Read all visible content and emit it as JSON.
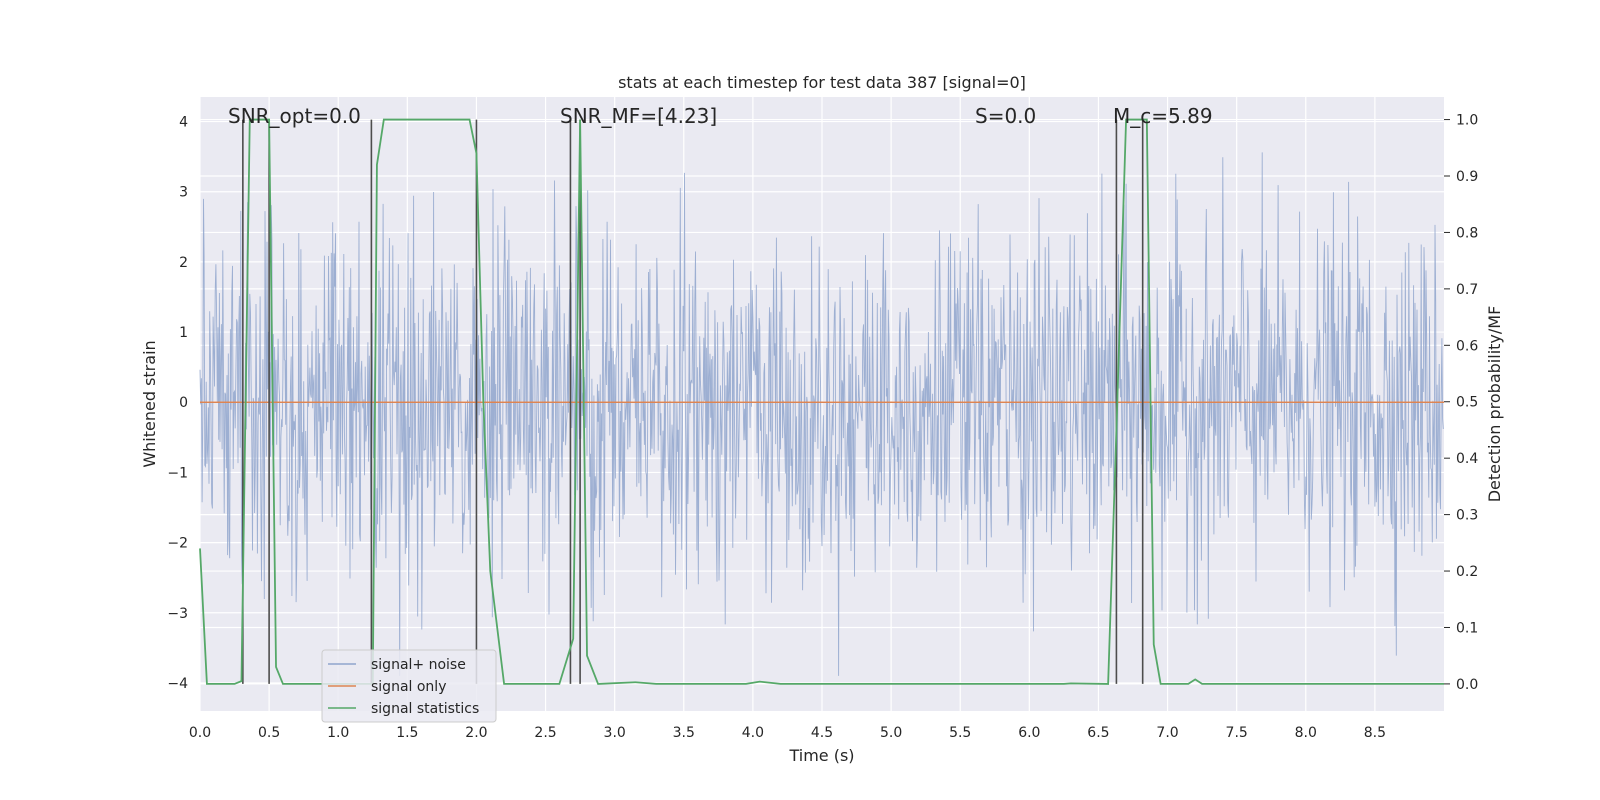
{
  "chart_data": {
    "type": "line",
    "title": "stats at each timestep for test data 387 [signal=0]",
    "xlabel": "Time (s)",
    "ylabel": "Whitened strain",
    "y2label": "Detection probability/MF",
    "xlim": [
      0.0,
      9.0
    ],
    "ylim": [
      -4.4,
      4.35
    ],
    "y2lim": [
      -0.048,
      1.04
    ],
    "x_ticks": [
      "0.0",
      "0.5",
      "1.0",
      "1.5",
      "2.0",
      "2.5",
      "3.0",
      "3.5",
      "4.0",
      "4.5",
      "5.0",
      "5.5",
      "6.0",
      "6.5",
      "7.0",
      "7.5",
      "8.0",
      "8.5"
    ],
    "y_ticks": [
      "4",
      "3",
      "2",
      "1",
      "0",
      "−1",
      "−2",
      "−3",
      "−4"
    ],
    "y2_ticks": [
      "1.0",
      "0.9",
      "0.8",
      "0.7",
      "0.6",
      "0.5",
      "0.4",
      "0.3",
      "0.2",
      "0.1",
      "0.0"
    ],
    "grid": true,
    "legend_position": "lower-left",
    "annotations": [
      {
        "text": "SNR_opt=0.0",
        "x": 0.2
      },
      {
        "text": "SNR_MF=[4.23]",
        "x": 2.6
      },
      {
        "text": "S=0.0",
        "x": 5.6
      },
      {
        "text": "M_c=5.89",
        "x": 6.6
      }
    ],
    "colors": {
      "background": "#eaeaf2",
      "grid": "#ffffff",
      "noise": "#8fa4cc",
      "signal": "#dd8452",
      "statistics": "#55a868",
      "marker": "#4d4d4d"
    },
    "series": [
      {
        "name": "signal+ noise",
        "kind": "noise",
        "envelope_note": "whitened noise, roughly ±2.5 with peaks to ~±3.9",
        "values": []
      },
      {
        "name": "signal only",
        "kind": "line",
        "x": [
          0.0,
          9.0
        ],
        "y": [
          0.0,
          0.0
        ]
      },
      {
        "name": "signal statistics",
        "kind": "line-y2",
        "x": [
          0.0,
          0.05,
          0.25,
          0.3,
          0.36,
          0.5,
          0.55,
          0.6,
          0.75,
          0.95,
          1.0,
          1.15,
          1.25,
          1.28,
          1.33,
          1.95,
          2.0,
          2.05,
          2.1,
          2.2,
          2.6,
          2.7,
          2.75,
          2.8,
          2.88,
          3.15,
          3.3,
          3.95,
          4.05,
          4.2,
          6.25,
          6.3,
          6.57,
          6.63,
          6.7,
          6.85,
          6.9,
          6.95,
          7.15,
          7.2,
          7.25,
          9.0
        ],
        "y": [
          0.24,
          0.0,
          0.0,
          0.005,
          1.0,
          1.0,
          0.03,
          0.0,
          0.0,
          0.0,
          0.0,
          0.0,
          0.0,
          0.92,
          1.0,
          1.0,
          0.94,
          0.5,
          0.2,
          0.0,
          0.0,
          0.08,
          1.0,
          0.05,
          0.0,
          0.003,
          0.0,
          0.0,
          0.004,
          0.0,
          0.0,
          0.001,
          0.0,
          0.45,
          1.0,
          1.0,
          0.07,
          0.0,
          0.0,
          0.008,
          0.0,
          0.0
        ]
      }
    ],
    "vertical_lines": [
      0.31,
      0.5,
      1.24,
      2.0,
      2.68,
      2.75,
      6.63,
      6.82
    ]
  }
}
